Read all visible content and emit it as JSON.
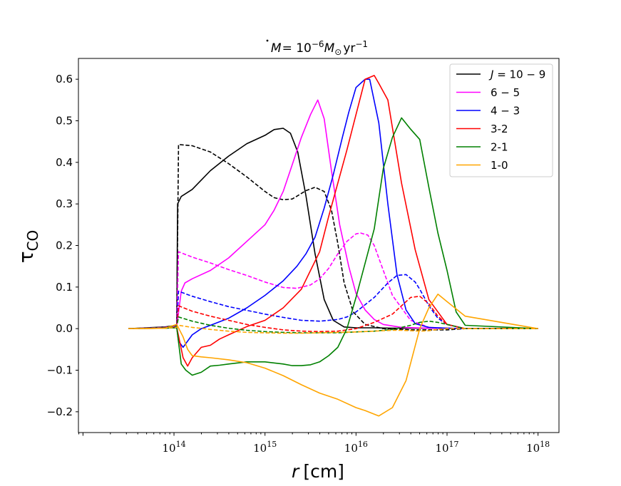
{
  "chart_data": {
    "type": "line",
    "title_parts": {
      "m": "M",
      "eq": "= 10",
      "exp": "−6",
      "unit": "M",
      "sun": "⊙",
      "yr": "yr",
      "yrexp": "−1"
    },
    "title": "Ṁ = 10^−6 M⊙ yr^−1",
    "xlabel_parts": {
      "var": "r",
      "unit": "[cm]"
    },
    "xlabel": "r [cm]",
    "ylabel_parts": {
      "tau": "τ",
      "sub": "CO"
    },
    "ylabel": "τCO",
    "xscale": "log",
    "xlim_exp": [
      12.95,
      18.23
    ],
    "ylim": [
      -0.25,
      0.65
    ],
    "yticks": [
      -0.2,
      -0.1,
      0.0,
      0.1,
      0.2,
      0.3,
      0.4,
      0.5,
      0.6
    ],
    "ytick_labels": [
      "−0.2",
      "−0.1",
      "0.0",
      "0.1",
      "0.2",
      "0.3",
      "0.4",
      "0.5",
      "0.6"
    ],
    "xticks_exp": [
      14,
      15,
      16,
      17,
      18
    ],
    "xtick_labels": [
      {
        "base": "10",
        "exp": "14"
      },
      {
        "base": "10",
        "exp": "15"
      },
      {
        "base": "10",
        "exp": "16"
      },
      {
        "base": "10",
        "exp": "17"
      },
      {
        "base": "10",
        "exp": "18"
      }
    ],
    "legend": {
      "placement": "upper-right",
      "entries": [
        {
          "label_italic": "J",
          "label": " = 10 − 9",
          "color": "#000000"
        },
        {
          "label_italic": "",
          "label": "6 − 5",
          "color": "#ff00ff"
        },
        {
          "label_italic": "",
          "label": "4 − 3",
          "color": "#0000ff"
        },
        {
          "label_italic": "",
          "label": "3-2",
          "color": "#ff0000"
        },
        {
          "label_italic": "",
          "label": "2-1",
          "color": "#008000"
        },
        {
          "label_italic": "",
          "label": "1-0",
          "color": "#ffa500"
        }
      ]
    },
    "series": [
      {
        "name": "J=10-9 solid",
        "color": "#000000",
        "dash": false,
        "x": [
          13.5,
          13.9,
          14.03,
          14.04,
          14.08,
          14.2,
          14.4,
          14.6,
          14.8,
          15.0,
          15.1,
          15.2,
          15.28,
          15.36,
          15.45,
          15.55,
          15.65,
          15.75,
          15.87,
          16.0,
          16.2,
          16.4,
          16.6,
          16.8,
          17.0,
          17.2,
          18.0
        ],
        "y": [
          0.0,
          0.004,
          0.008,
          0.3,
          0.318,
          0.335,
          0.38,
          0.415,
          0.445,
          0.465,
          0.479,
          0.482,
          0.47,
          0.425,
          0.32,
          0.18,
          0.07,
          0.02,
          0.004,
          0.002,
          0.002,
          0.001,
          0.001,
          0.001,
          0.001,
          0.0,
          0.0
        ]
      },
      {
        "name": "J=10-9 dashed",
        "color": "#000000",
        "dash": true,
        "x": [
          13.5,
          13.9,
          14.03,
          14.05,
          14.2,
          14.4,
          14.6,
          14.8,
          15.0,
          15.1,
          15.2,
          15.3,
          15.45,
          15.55,
          15.65,
          15.73,
          15.8,
          15.87,
          15.97,
          16.1,
          16.3,
          16.6,
          17.0,
          17.2,
          18.0
        ],
        "y": [
          0.0,
          0.003,
          0.007,
          0.443,
          0.44,
          0.425,
          0.397,
          0.365,
          0.33,
          0.315,
          0.31,
          0.312,
          0.332,
          0.34,
          0.33,
          0.285,
          0.205,
          0.11,
          0.04,
          0.01,
          0.0,
          -0.003,
          -0.003,
          0.0,
          0.0
        ]
      },
      {
        "name": "6-5 solid",
        "color": "#ff00ff",
        "dash": false,
        "x": [
          13.5,
          13.9,
          14.03,
          14.08,
          14.12,
          14.2,
          14.4,
          14.6,
          14.8,
          15.0,
          15.1,
          15.2,
          15.3,
          15.4,
          15.5,
          15.58,
          15.65,
          15.73,
          15.82,
          15.92,
          16.0,
          16.1,
          16.2,
          16.3,
          16.5,
          16.8,
          17.0,
          17.2,
          18.0
        ],
        "y": [
          0.0,
          0.002,
          0.005,
          0.09,
          0.11,
          0.12,
          0.14,
          0.17,
          0.21,
          0.25,
          0.285,
          0.33,
          0.395,
          0.46,
          0.515,
          0.55,
          0.505,
          0.38,
          0.25,
          0.15,
          0.085,
          0.045,
          0.022,
          0.01,
          0.003,
          0.001,
          0.001,
          0.0,
          0.0
        ]
      },
      {
        "name": "6-5 dashed",
        "color": "#ff00ff",
        "dash": true,
        "x": [
          13.5,
          13.9,
          14.03,
          14.05,
          14.2,
          14.4,
          14.6,
          14.8,
          15.0,
          15.2,
          15.35,
          15.5,
          15.6,
          15.7,
          15.8,
          15.9,
          16.0,
          16.05,
          16.13,
          16.2,
          16.3,
          16.4,
          16.6,
          16.8,
          17.0,
          17.2,
          18.0
        ],
        "y": [
          0.0,
          0.003,
          0.006,
          0.185,
          0.172,
          0.158,
          0.142,
          0.128,
          0.112,
          0.099,
          0.097,
          0.105,
          0.12,
          0.145,
          0.18,
          0.21,
          0.228,
          0.23,
          0.225,
          0.2,
          0.14,
          0.08,
          0.02,
          0.003,
          0.001,
          0.0,
          0.0
        ]
      },
      {
        "name": "4-3 solid",
        "color": "#0000ff",
        "dash": false,
        "x": [
          13.5,
          13.9,
          14.03,
          14.05,
          14.1,
          14.2,
          14.3,
          14.4,
          14.6,
          14.8,
          15.0,
          15.2,
          15.35,
          15.45,
          15.55,
          15.65,
          15.75,
          15.85,
          15.92,
          16.0,
          16.1,
          16.15,
          16.25,
          16.35,
          16.45,
          16.55,
          16.65,
          16.8,
          17.0,
          17.2,
          18.0
        ],
        "y": [
          0.0,
          0.002,
          0.003,
          -0.03,
          -0.045,
          -0.015,
          0.0,
          0.008,
          0.025,
          0.05,
          0.08,
          0.115,
          0.15,
          0.18,
          0.22,
          0.29,
          0.37,
          0.46,
          0.52,
          0.58,
          0.6,
          0.6,
          0.495,
          0.3,
          0.13,
          0.045,
          0.012,
          0.003,
          0.001,
          0.0,
          0.0
        ]
      },
      {
        "name": "4-3 dashed",
        "color": "#0000ff",
        "dash": true,
        "x": [
          13.5,
          13.9,
          14.03,
          14.05,
          14.2,
          14.4,
          14.6,
          14.8,
          15.0,
          15.2,
          15.4,
          15.6,
          15.8,
          15.9,
          16.0,
          16.2,
          16.35,
          16.45,
          16.55,
          16.65,
          16.7,
          16.8,
          16.9,
          17.0,
          17.2,
          18.0
        ],
        "y": [
          0.0,
          0.002,
          0.004,
          0.09,
          0.078,
          0.065,
          0.053,
          0.044,
          0.035,
          0.027,
          0.02,
          0.018,
          0.022,
          0.028,
          0.04,
          0.075,
          0.11,
          0.128,
          0.13,
          0.112,
          0.095,
          0.055,
          0.025,
          0.01,
          0.0,
          0.0
        ]
      },
      {
        "name": "3-2 solid",
        "color": "#ff0000",
        "dash": false,
        "x": [
          13.5,
          13.9,
          14.03,
          14.1,
          14.15,
          14.2,
          14.3,
          14.4,
          14.5,
          14.6,
          14.8,
          15.0,
          15.2,
          15.4,
          15.6,
          15.7,
          15.8,
          15.9,
          16.0,
          16.1,
          16.2,
          16.25,
          16.35,
          16.5,
          16.65,
          16.8,
          17.0,
          17.2,
          18.0
        ],
        "y": [
          0.0,
          0.001,
          0.003,
          -0.07,
          -0.09,
          -0.07,
          -0.045,
          -0.04,
          -0.025,
          -0.015,
          0.005,
          0.02,
          0.05,
          0.095,
          0.185,
          0.27,
          0.35,
          0.43,
          0.515,
          0.6,
          0.609,
          0.59,
          0.55,
          0.35,
          0.19,
          0.07,
          0.01,
          0.0,
          0.0
        ]
      },
      {
        "name": "3-2 dashed",
        "color": "#ff0000",
        "dash": true,
        "x": [
          13.5,
          13.9,
          14.03,
          14.05,
          14.2,
          14.4,
          14.6,
          14.8,
          15.0,
          15.2,
          15.4,
          15.6,
          15.8,
          16.0,
          16.2,
          16.4,
          16.5,
          16.6,
          16.7,
          16.8,
          16.9,
          17.0,
          17.2,
          18.0
        ],
        "y": [
          0.0,
          0.002,
          0.004,
          0.055,
          0.042,
          0.03,
          0.02,
          0.01,
          0.003,
          -0.003,
          -0.006,
          -0.007,
          -0.006,
          0.0,
          0.015,
          0.035,
          0.055,
          0.075,
          0.078,
          0.06,
          0.03,
          0.01,
          0.0,
          0.0
        ]
      },
      {
        "name": "2-1 solid",
        "color": "#008000",
        "dash": false,
        "x": [
          13.5,
          13.9,
          14.03,
          14.08,
          14.13,
          14.2,
          14.3,
          14.4,
          14.5,
          14.6,
          14.8,
          15.0,
          15.2,
          15.3,
          15.4,
          15.5,
          15.6,
          15.7,
          15.8,
          15.9,
          16.0,
          16.2,
          16.3,
          16.4,
          16.5,
          16.6,
          16.7,
          16.8,
          16.9,
          17.0,
          17.1,
          17.2,
          18.0
        ],
        "y": [
          0.0,
          0.001,
          0.002,
          -0.085,
          -0.1,
          -0.112,
          -0.105,
          -0.09,
          -0.088,
          -0.085,
          -0.08,
          -0.08,
          -0.085,
          -0.089,
          -0.089,
          -0.087,
          -0.08,
          -0.065,
          -0.045,
          0.0,
          0.075,
          0.24,
          0.385,
          0.46,
          0.507,
          0.48,
          0.455,
          0.34,
          0.23,
          0.14,
          0.04,
          0.008,
          0.0
        ]
      },
      {
        "name": "2-1 dashed",
        "color": "#008000",
        "dash": true,
        "x": [
          13.5,
          13.9,
          14.03,
          14.05,
          14.2,
          14.4,
          14.6,
          14.8,
          15.0,
          15.2,
          15.4,
          15.6,
          15.8,
          16.0,
          16.2,
          16.4,
          16.6,
          16.7,
          16.8,
          16.9,
          17.0,
          17.2,
          18.0
        ],
        "y": [
          0.0,
          0.002,
          0.005,
          0.028,
          0.018,
          0.008,
          0.001,
          -0.004,
          -0.007,
          -0.009,
          -0.01,
          -0.01,
          -0.01,
          -0.008,
          -0.006,
          -0.002,
          0.008,
          0.015,
          0.018,
          0.015,
          0.01,
          0.0,
          0.0
        ]
      },
      {
        "name": "1-0 solid",
        "color": "#ffa500",
        "dash": false,
        "x": [
          13.5,
          13.9,
          14.03,
          14.1,
          14.15,
          14.2,
          14.3,
          14.4,
          14.6,
          14.8,
          15.0,
          15.2,
          15.4,
          15.6,
          15.8,
          16.0,
          16.1,
          16.25,
          16.4,
          16.55,
          16.7,
          16.8,
          16.9,
          17.0,
          17.2,
          18.0
        ],
        "y": [
          0.0,
          0.001,
          0.01,
          -0.02,
          -0.05,
          -0.065,
          -0.068,
          -0.07,
          -0.075,
          -0.082,
          -0.095,
          -0.113,
          -0.135,
          -0.155,
          -0.17,
          -0.19,
          -0.197,
          -0.21,
          -0.19,
          -0.125,
          0.0,
          0.05,
          0.083,
          0.065,
          0.03,
          0.0
        ]
      },
      {
        "name": "1-0 dashed",
        "color": "#ffa500",
        "dash": true,
        "x": [
          13.5,
          13.9,
          14.03,
          14.05,
          14.2,
          14.4,
          14.6,
          14.8,
          15.0,
          15.2,
          15.4,
          15.6,
          15.8,
          16.0,
          16.2,
          16.4,
          16.5,
          16.6,
          16.7,
          16.8,
          16.9,
          17.0,
          17.2,
          18.0
        ],
        "y": [
          0.0,
          0.001,
          0.003,
          0.008,
          0.003,
          -0.002,
          -0.006,
          -0.009,
          -0.01,
          -0.011,
          -0.011,
          -0.01,
          -0.009,
          -0.008,
          -0.006,
          -0.004,
          -0.004,
          -0.005,
          -0.006,
          -0.005,
          -0.002,
          0.0,
          0.0,
          0.0
        ]
      }
    ]
  }
}
